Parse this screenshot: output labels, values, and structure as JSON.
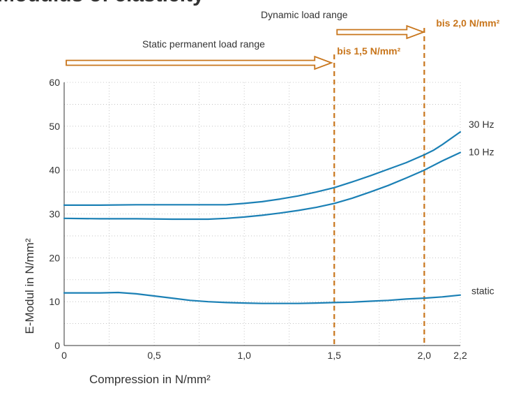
{
  "header_fragment": "Modulus of elasticity",
  "chart_data": {
    "type": "line",
    "title": "",
    "xlabel": "Compression in N/mm²",
    "ylabel": "E-Modul in N/mm²",
    "xlim": [
      0,
      2.2
    ],
    "ylim": [
      0,
      60
    ],
    "x_ticks": [
      0,
      0.5,
      1.0,
      1.5,
      2.0,
      2.2
    ],
    "x_tick_labels": [
      "0",
      "0,5",
      "1,0",
      "1,5",
      "2,0",
      "2,2"
    ],
    "y_ticks": [
      0,
      10,
      20,
      30,
      40,
      50,
      60
    ],
    "y_tick_labels": [
      "0",
      "10",
      "20",
      "30",
      "40",
      "50",
      "60"
    ],
    "grid": "dotted",
    "series": [
      {
        "name": "30 Hz",
        "x": [
          0,
          0.2,
          0.4,
          0.6,
          0.8,
          0.9,
          1.0,
          1.1,
          1.2,
          1.3,
          1.4,
          1.5,
          1.6,
          1.7,
          1.8,
          1.9,
          2.0,
          2.05,
          2.1,
          2.2
        ],
        "y": [
          32.0,
          32.0,
          32.1,
          32.1,
          32.1,
          32.1,
          32.4,
          32.8,
          33.4,
          34.1,
          35.0,
          36.0,
          37.3,
          38.7,
          40.2,
          41.7,
          43.5,
          44.5,
          45.8,
          48.7
        ]
      },
      {
        "name": "10 Hz",
        "x": [
          0,
          0.2,
          0.4,
          0.6,
          0.8,
          0.9,
          1.0,
          1.1,
          1.2,
          1.3,
          1.4,
          1.5,
          1.6,
          1.7,
          1.8,
          1.9,
          2.0,
          2.1,
          2.2
        ],
        "y": [
          29.0,
          28.9,
          28.9,
          28.8,
          28.8,
          29.0,
          29.3,
          29.7,
          30.2,
          30.8,
          31.5,
          32.4,
          33.6,
          35.0,
          36.5,
          38.2,
          40.0,
          42.1,
          44.0
        ]
      },
      {
        "name": "static",
        "x": [
          0,
          0.1,
          0.2,
          0.3,
          0.4,
          0.5,
          0.6,
          0.7,
          0.8,
          0.9,
          1.0,
          1.1,
          1.2,
          1.3,
          1.4,
          1.5,
          1.6,
          1.7,
          1.8,
          1.9,
          2.0,
          2.1,
          2.2
        ],
        "y": [
          12.0,
          12.0,
          12.0,
          12.1,
          11.8,
          11.3,
          10.8,
          10.3,
          10.0,
          9.8,
          9.7,
          9.6,
          9.6,
          9.6,
          9.7,
          9.8,
          9.9,
          10.1,
          10.3,
          10.6,
          10.8,
          11.1,
          11.5
        ]
      }
    ],
    "series_color": "#1b80b5",
    "limit_color": "#c8751b",
    "limits": [
      {
        "x": 1.5,
        "label": "bis 1,5 N/mm²"
      },
      {
        "x": 2.0,
        "label": "bis 2,0 N/mm²"
      }
    ],
    "ranges": [
      {
        "label": "Static permanent load range",
        "to_x": 1.5
      },
      {
        "label": "Dynamic load range",
        "from_x": 1.5,
        "to_x": 2.0
      }
    ]
  }
}
